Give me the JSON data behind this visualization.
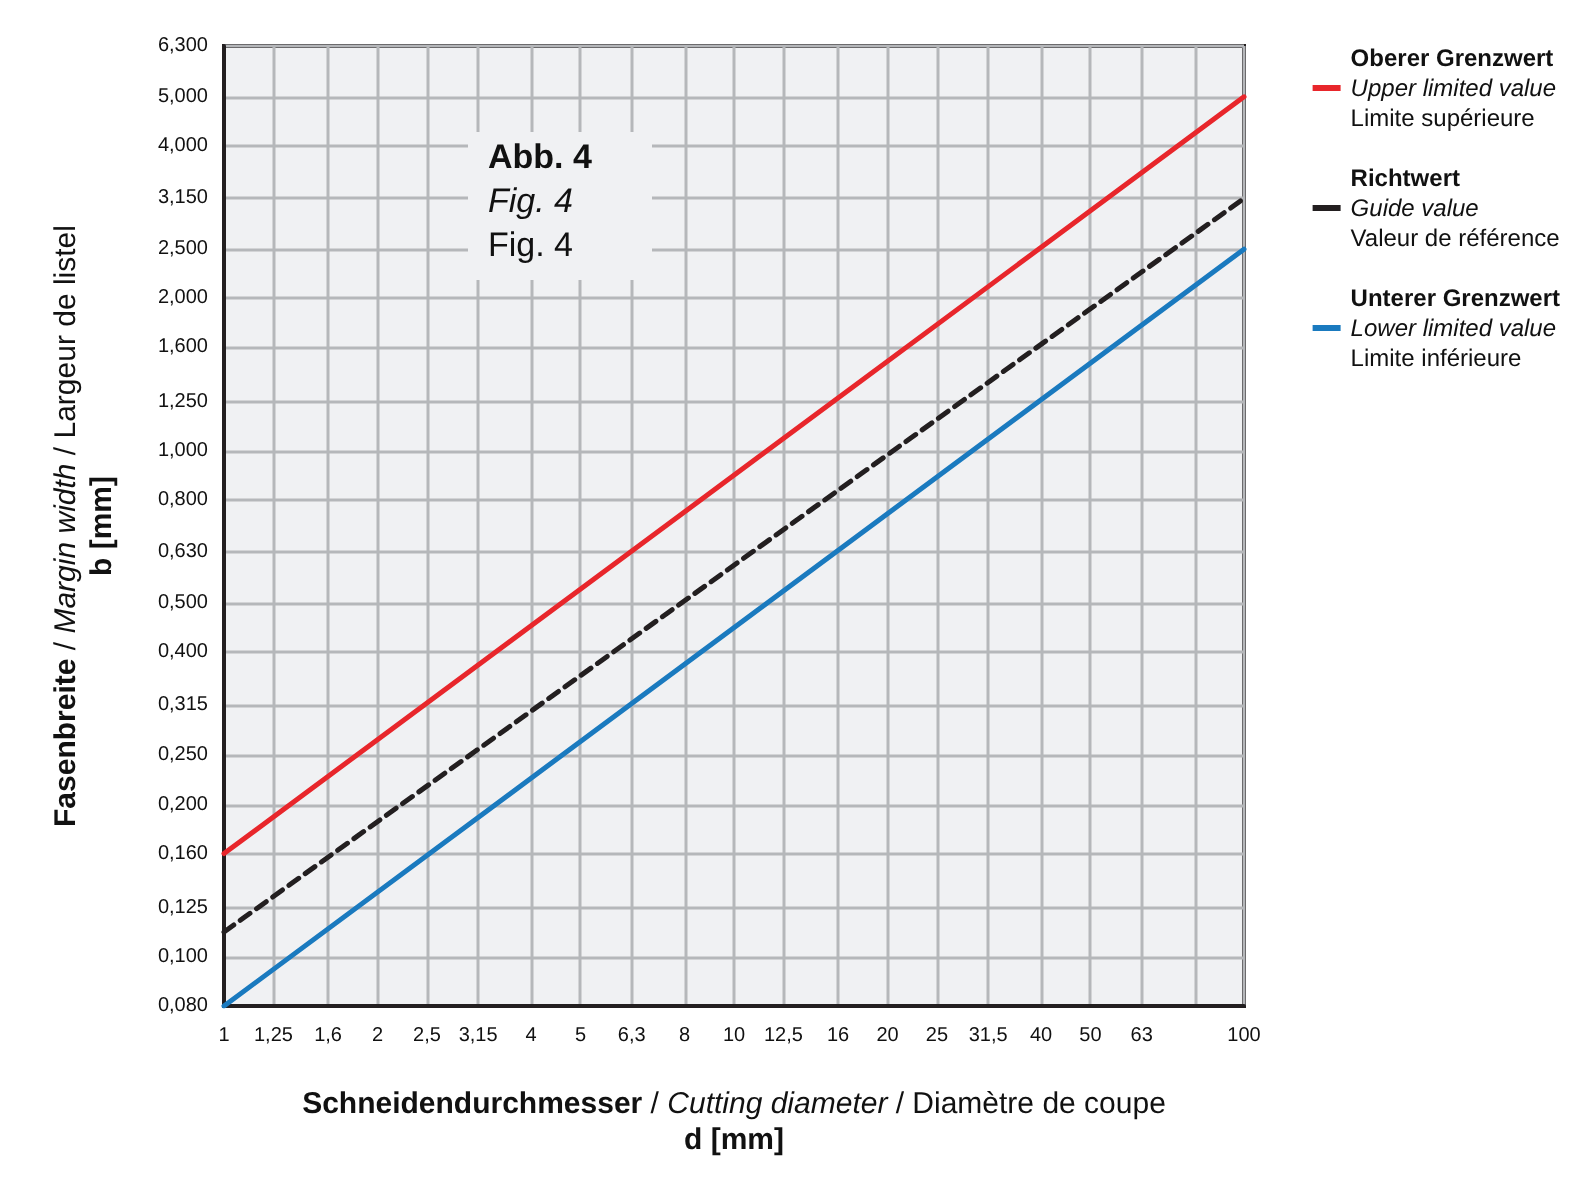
{
  "chart_data": {
    "type": "line",
    "xlabel": "Schneidendurchmesser / Cutting diameter / Diamètre de coupe\nd [mm]",
    "ylabel": "Fasenbreite / Margin width / Largeur de listel\nb [mm]",
    "annotations": [
      "Abb. 4",
      "Fig. 4",
      "Fig. 4"
    ],
    "log": "xy",
    "grid": true,
    "legend": "right",
    "marker": "none",
    "xlim": [
      1,
      100
    ],
    "ylim": [
      0.08,
      6.3
    ],
    "xticks": [
      1,
      {
        "value": 1.25,
        "label": "1,25"
      },
      {
        "value": 1.6,
        "label": "1,6"
      },
      2,
      {
        "value": 2.5,
        "label": "2,5"
      },
      {
        "value": 3.15,
        "label": "3,15"
      },
      4,
      5,
      {
        "value": 6.3,
        "label": "6,3"
      },
      8,
      10,
      {
        "value": 12.5,
        "label": "12,5"
      },
      16,
      20,
      25,
      {
        "value": 31.5,
        "label": "31,5"
      },
      40,
      50,
      63,
      {
        "value": 80,
        "label": null
      },
      100
    ],
    "yticks": [
      {
        "value": 0.08,
        "label": "0,080"
      },
      {
        "value": 0.1,
        "label": "0,100"
      },
      {
        "value": 0.125,
        "label": "0,125"
      },
      {
        "value": 0.16,
        "label": "0,160"
      },
      {
        "value": 0.2,
        "label": "0,200"
      },
      {
        "value": 0.25,
        "label": "0,250"
      },
      {
        "value": 0.315,
        "label": "0,315"
      },
      {
        "value": 0.4,
        "label": "0,400"
      },
      {
        "value": 0.5,
        "label": "0,500"
      },
      {
        "value": 0.63,
        "label": "0,630"
      },
      {
        "value": 0.8,
        "label": "0,800"
      },
      {
        "value": 1,
        "label": "1,000"
      },
      {
        "value": 1.25,
        "label": "1,250"
      },
      {
        "value": 1.6,
        "label": "1,600"
      },
      {
        "value": 2,
        "label": "2,000"
      },
      {
        "value": 2.5,
        "label": "2,500"
      },
      {
        "value": 3.15,
        "label": "3,150"
      },
      {
        "value": 4,
        "label": "4,000"
      },
      {
        "value": 5,
        "label": "5,000"
      },
      {
        "value": 6.3,
        "label": "6,300"
      }
    ],
    "x": [
      1,
      100
    ],
    "series": [
      {
        "name": "Oberer Grenzwert\nUpper limited value\nLimite supérieure",
        "color": "#e8262b",
        "values": [
          0.16,
          5.0
        ],
        "line_style": "solid"
      },
      {
        "name": "Richtwert\nGuide value\nValeur de référence",
        "color": "#231f20",
        "values": [
          0.112,
          3.15
        ],
        "line_style": "dashed"
      },
      {
        "name": "Unterer Grenzwert\nLower limited value\nLimite inférieure",
        "color": "#1a7abf",
        "values": [
          0.08,
          2.5
        ],
        "line_style": "solid"
      }
    ]
  }
}
